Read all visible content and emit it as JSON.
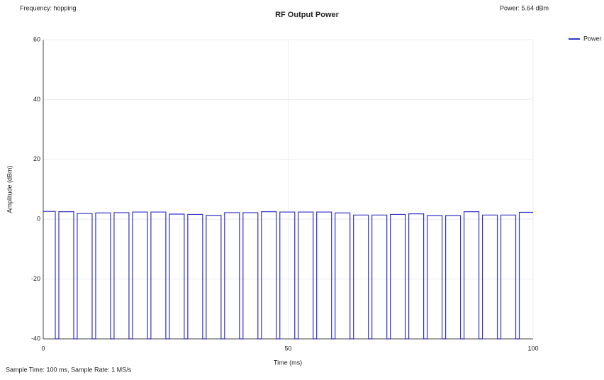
{
  "chart_data": {
    "type": "line",
    "title": "RF Output Power",
    "header_left": "Frequency: hopping",
    "header_right": "Power: 5.64 dBm",
    "footer": "Sample Time: 100 ms,  Sample Rate: 1 MS/s",
    "x_label": "Time (ms)",
    "y_label": "Amplitude (dBm)",
    "xlim": [
      0,
      100
    ],
    "xticks": [
      0,
      50,
      100
    ],
    "ylim": [
      -40,
      60
    ],
    "yticks": [
      -40,
      -20,
      0,
      20,
      40,
      60
    ],
    "grid": true,
    "legend": "top-right",
    "series": [
      {
        "name": "Power",
        "color": "#3333cc",
        "x": [
          0,
          2.46,
          2.46,
          3.18,
          3.18,
          6.22,
          6.22,
          6.94,
          6.94,
          9.98,
          9.98,
          10.7,
          10.7,
          13.74,
          13.74,
          14.46,
          14.46,
          17.5,
          17.5,
          18.22,
          18.22,
          21.26,
          21.26,
          21.98,
          21.98,
          25.02,
          25.02,
          25.74,
          25.74,
          28.78,
          28.78,
          29.5,
          29.5,
          32.54,
          32.54,
          33.26,
          33.26,
          36.3,
          36.3,
          37.02,
          37.02,
          40.06,
          40.06,
          40.78,
          40.78,
          43.82,
          43.82,
          44.54,
          44.54,
          47.58,
          47.58,
          48.3,
          48.3,
          51.34,
          51.34,
          52.06,
          52.06,
          55.1,
          55.1,
          55.82,
          55.82,
          58.86,
          58.86,
          59.58,
          59.58,
          62.62,
          62.62,
          63.34,
          63.34,
          66.38,
          66.38,
          67.1,
          67.1,
          70.14,
          70.14,
          70.86,
          70.86,
          73.9,
          73.9,
          74.62,
          74.62,
          77.66,
          77.66,
          78.38,
          78.38,
          81.42,
          81.42,
          82.14,
          82.14,
          85.18,
          85.18,
          85.9,
          85.9,
          88.94,
          88.94,
          89.66,
          89.66,
          92.7,
          92.7,
          93.42,
          93.42,
          96.46,
          96.46,
          97.18,
          97.18,
          100
        ],
        "values": [
          2.6,
          2.6,
          -40,
          -40,
          2.5,
          2.5,
          -40,
          -40,
          1.9,
          1.9,
          -40,
          -40,
          2.1,
          2.1,
          -40,
          -40,
          2.2,
          2.2,
          -40,
          -40,
          2.4,
          2.4,
          -40,
          -40,
          2.4,
          2.4,
          -40,
          -40,
          1.7,
          1.7,
          -40,
          -40,
          1.6,
          1.6,
          -40,
          -40,
          1.3,
          1.3,
          -40,
          -40,
          2.2,
          2.2,
          -40,
          -40,
          2.2,
          2.2,
          -40,
          -40,
          2.5,
          2.5,
          -40,
          -40,
          2.4,
          2.4,
          -40,
          -40,
          2.4,
          2.4,
          -40,
          -40,
          2.4,
          2.4,
          -40,
          -40,
          2.1,
          2.1,
          -40,
          -40,
          1.4,
          1.4,
          -40,
          -40,
          1.4,
          1.4,
          -40,
          -40,
          1.6,
          1.6,
          -40,
          -40,
          1.8,
          1.8,
          -40,
          -40,
          1.2,
          1.2,
          -40,
          -40,
          1.2,
          1.2,
          -40,
          -40,
          2.5,
          2.5,
          -40,
          -40,
          1.4,
          1.4,
          -40,
          -40,
          1.4,
          1.4,
          -40,
          -40,
          2.3,
          2.3
        ]
      }
    ]
  }
}
